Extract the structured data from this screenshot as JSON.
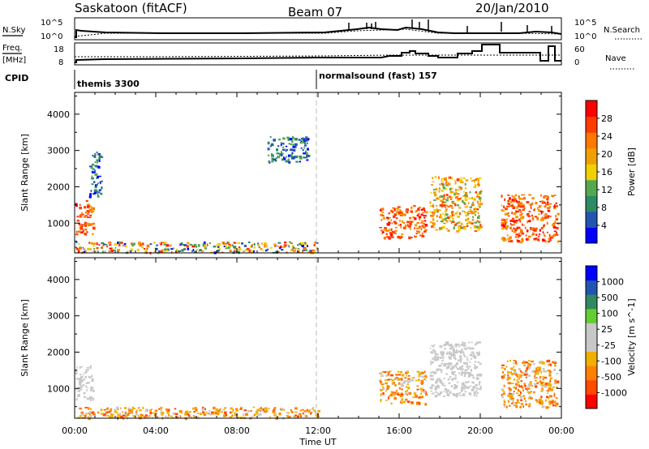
{
  "header": {
    "station": "Saskatoon (fitACF)",
    "beam": "Beam 07",
    "date": "20/Jan/2010"
  },
  "status_panels": {
    "nsky_label": "N.Sky",
    "nsearch_label": "N.Search",
    "noise_ticks": [
      "10^5",
      "10^0"
    ],
    "noise_ticks_right": [
      "10^5",
      "10^0"
    ],
    "freq_label_top": "Freq.",
    "freq_label_bottom": "[MHz]",
    "freq_ticks": [
      "18",
      "8"
    ],
    "nave_label": "Nave",
    "nave_ticks": [
      "60",
      "0"
    ],
    "cpid_label": "CPID",
    "cpid_programs": [
      {
        "name": "themis 3300",
        "start_hour": 0
      },
      {
        "name": "normalsound (fast) 157",
        "start_hour": 12
      }
    ]
  },
  "chart_data": [
    {
      "type": "heatmap",
      "title": "",
      "xlabel": "Time UT",
      "ylabel": "Slant Range [km]",
      "xlim": [
        0,
        24
      ],
      "ylim": [
        180,
        4600
      ],
      "x_ticks": [
        "00:00",
        "04:00",
        "08:00",
        "12:00",
        "16:00",
        "20:00",
        "00:00"
      ],
      "y_ticks": [
        "1000",
        "2000",
        "3000",
        "4000"
      ],
      "colorbar": {
        "label": "Power [dB]",
        "ticks": [
          "28",
          "24",
          "20",
          "16",
          "12",
          "8",
          "4"
        ],
        "range": [
          0,
          30
        ],
        "colors": [
          "#0000ff",
          "#2255b0",
          "#2c8a64",
          "#55a850",
          "#f0d000",
          "#f0a000",
          "#ff7800",
          "#ff3c00",
          "#ff0000"
        ]
      },
      "echo_regions": [
        {
          "t0": 0.0,
          "t1": 0.9,
          "r0": 700,
          "r1": 1650,
          "level": "high"
        },
        {
          "t0": 0.7,
          "t1": 1.3,
          "r0": 1700,
          "r1": 3000,
          "level": "low"
        },
        {
          "t0": 0.0,
          "t1": 12.0,
          "r0": 200,
          "r1": 500,
          "level": "mixed"
        },
        {
          "t0": 9.5,
          "t1": 11.5,
          "r0": 2700,
          "r1": 3400,
          "level": "low"
        },
        {
          "t0": 15.0,
          "t1": 17.3,
          "r0": 600,
          "r1": 1500,
          "level": "high"
        },
        {
          "t0": 17.5,
          "t1": 20.0,
          "r0": 800,
          "r1": 2300,
          "level": "medium"
        },
        {
          "t0": 21.0,
          "t1": 23.8,
          "r0": 500,
          "r1": 1800,
          "level": "high"
        }
      ]
    },
    {
      "type": "heatmap",
      "title": "",
      "xlabel": "Time UT",
      "ylabel": "Slant Range [km]",
      "xlim": [
        0,
        24
      ],
      "ylim": [
        180,
        4600
      ],
      "x_ticks": [
        "00:00",
        "04:00",
        "08:00",
        "12:00",
        "16:00",
        "20:00",
        "00:00"
      ],
      "y_ticks": [
        "1000",
        "2000",
        "3000",
        "4000"
      ],
      "colorbar": {
        "label": "Velocity [m s^-1]",
        "ticks": [
          "1000",
          "500",
          "100",
          "25",
          "-25",
          "-100",
          "-500",
          "-1000"
        ],
        "range": [
          -1000,
          1000
        ],
        "colors": [
          "#ff0000",
          "#ff4a00",
          "#ff8000",
          "#f0b000",
          "#c8c8c8",
          "#c8c8c8",
          "#66cc33",
          "#2f8a5f",
          "#2255b0",
          "#0000ff"
        ]
      },
      "echo_regions": [
        {
          "t0": 0.0,
          "t1": 0.9,
          "r0": 700,
          "r1": 1650,
          "level": "slow"
        },
        {
          "t0": 0.0,
          "t1": 12.0,
          "r0": 200,
          "r1": 500,
          "level": "negative"
        },
        {
          "t0": 15.0,
          "t1": 17.3,
          "r0": 600,
          "r1": 1500,
          "level": "negative"
        },
        {
          "t0": 17.5,
          "t1": 20.0,
          "r0": 800,
          "r1": 2300,
          "level": "slow"
        },
        {
          "t0": 21.0,
          "t1": 23.8,
          "r0": 500,
          "r1": 1800,
          "level": "negative"
        }
      ]
    }
  ],
  "colors": {
    "axis": "#000000",
    "background": "#ffffff",
    "noon_line": "#bbbbbb"
  }
}
